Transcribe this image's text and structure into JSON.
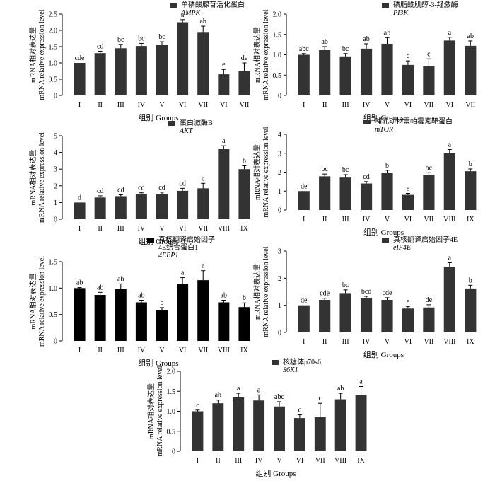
{
  "chart_data": [
    {
      "type": "bar",
      "title_cn": "单磷酸腺苷活化蛋白",
      "title_en": "AMPK",
      "ylabel_cn": "mRNA相对表达量",
      "ylabel_en": "mRNA relative expression level",
      "xlabel": "组别 Groups",
      "ylim": [
        0,
        2.5
      ],
      "yticks": [
        "0",
        "0.5",
        "1.0",
        "1.5",
        "2.0",
        "2.5"
      ],
      "categories": [
        "I",
        "II",
        "III",
        "IV",
        "V",
        "VI",
        "VII",
        "VI",
        "VII"
      ],
      "values": [
        1.0,
        1.3,
        1.45,
        1.52,
        1.55,
        2.25,
        1.95,
        0.65,
        0.75
      ],
      "errors": [
        0.0,
        0.06,
        0.12,
        0.08,
        0.1,
        0.08,
        0.18,
        0.15,
        0.25
      ],
      "letters": [
        "cde",
        "cd",
        "bc",
        "bc",
        "bc",
        "a",
        "ab",
        "e",
        "de"
      ],
      "fill": "#333333"
    },
    {
      "type": "bar",
      "title_cn": "磷脂酰肌醇-3-羟激酶",
      "title_en": "PI3K",
      "ylabel_cn": "mRNA相对表达量",
      "ylabel_en": "mRNA relative expression level",
      "xlabel": "组别 Groups",
      "ylim": [
        0,
        2.0
      ],
      "yticks": [
        "0",
        "0.5",
        "1.0",
        "1.5",
        "2.0"
      ],
      "categories": [
        "I",
        "II",
        "III",
        "IV",
        "V",
        "VI",
        "VII",
        "VI",
        "VII"
      ],
      "values": [
        1.0,
        1.12,
        0.96,
        1.15,
        1.27,
        0.75,
        0.72,
        1.35,
        1.22
      ],
      "errors": [
        0.03,
        0.08,
        0.07,
        0.12,
        0.15,
        0.1,
        0.18,
        0.08,
        0.12
      ],
      "letters": [
        "abc",
        "ab",
        "bc",
        "ab",
        "ab",
        "c",
        "c",
        "a",
        "ab"
      ],
      "fill": "#333333"
    },
    {
      "type": "bar",
      "title_cn": "蛋白激酶B",
      "title_en": "AKT",
      "ylabel_cn": "mRNA相对表达量",
      "ylabel_en": "mRNA relative expression level",
      "xlabel": "组别 Groups",
      "ylim": [
        0,
        5
      ],
      "yticks": [
        "0",
        "1",
        "2",
        "3",
        "4",
        "5"
      ],
      "categories": [
        "I",
        "II",
        "III",
        "IV",
        "V",
        "VI",
        "VII",
        "VIII",
        "IX"
      ],
      "values": [
        1.0,
        1.3,
        1.38,
        1.52,
        1.5,
        1.7,
        1.85,
        4.2,
        3.0
      ],
      "errors": [
        0.0,
        0.1,
        0.08,
        0.06,
        0.12,
        0.15,
        0.3,
        0.2,
        0.2
      ],
      "letters": [
        "d",
        "cd",
        "cd",
        "cd",
        "cd",
        "cd",
        "c",
        "a",
        "b"
      ],
      "fill": "#333333"
    },
    {
      "type": "bar",
      "title_cn": "哺乳动物雷帕霉素靶蛋白",
      "title_en": "mTOR",
      "ylabel_cn": "mRNA相对表达量",
      "ylabel_en": "mRNA relative expression level",
      "xlabel": "组别 Groups",
      "ylim": [
        0,
        4
      ],
      "yticks": [
        "0",
        "1",
        "2",
        "3",
        "4"
      ],
      "categories": [
        "I",
        "II",
        "III",
        "IV",
        "V",
        "VI",
        "VII",
        "VIII",
        "IX"
      ],
      "values": [
        1.0,
        1.78,
        1.75,
        1.4,
        1.98,
        0.8,
        1.85,
        3.0,
        2.05
      ],
      "errors": [
        0.0,
        0.12,
        0.12,
        0.1,
        0.12,
        0.08,
        0.12,
        0.2,
        0.12
      ],
      "letters": [
        "de",
        "bc",
        "bc",
        "cd",
        "b",
        "e",
        "bc",
        "a",
        "b"
      ],
      "fill": "#333333"
    },
    {
      "type": "bar",
      "title_cn": "真核翻译启始因子",
      "title_cn2": "4E结合蛋白1",
      "title_en": "4EBP1",
      "ylabel_cn": "mRNA相对表达量",
      "ylabel_en": "mRNA relative expression level",
      "xlabel": "组别 Groups",
      "ylim": [
        0,
        1.5
      ],
      "yticks": [
        "0",
        "0.5",
        "1.0",
        "1.5"
      ],
      "categories": [
        "I",
        "II",
        "III",
        "IV",
        "V",
        "VI",
        "VII",
        "VIII",
        "IX"
      ],
      "values": [
        1.0,
        0.87,
        0.98,
        0.73,
        0.58,
        1.08,
        1.15,
        0.73,
        0.64
      ],
      "errors": [
        0.01,
        0.05,
        0.1,
        0.04,
        0.05,
        0.12,
        0.18,
        0.04,
        0.08
      ],
      "letters": [
        "ab",
        "ab",
        "ab",
        "ab",
        "b",
        "a",
        "a",
        "ab",
        "b"
      ],
      "fill": "#000000"
    },
    {
      "type": "bar",
      "title_cn": "真核翻译启始因子4E",
      "title_en": "eIF4E",
      "ylabel_cn": "mRNA相对表达量",
      "ylabel_en": "mRNA relative expression level",
      "xlabel": "组别 Groups",
      "ylim": [
        0,
        3
      ],
      "yticks": [
        "0",
        "1",
        "2",
        "3"
      ],
      "categories": [
        "I",
        "II",
        "III",
        "IV",
        "V",
        "VI",
        "VII",
        "VIII",
        "IX"
      ],
      "values": [
        1.0,
        1.2,
        1.45,
        1.27,
        1.2,
        0.88,
        0.92,
        2.42,
        1.62
      ],
      "errors": [
        0.0,
        0.06,
        0.12,
        0.06,
        0.08,
        0.08,
        0.1,
        0.15,
        0.12
      ],
      "letters": [
        "de",
        "cde",
        "bc",
        "bcd",
        "cde",
        "e",
        "de",
        "a",
        "b"
      ],
      "fill": "#333333"
    },
    {
      "type": "bar",
      "title_cn": "核糖体p70s6",
      "title_en": "S6K1",
      "ylabel_cn": "mRNA相对表达量",
      "ylabel_en": "mRNA relative expression level",
      "xlabel": "组别 Groups",
      "ylim": [
        0,
        2.0
      ],
      "yticks": [
        "0",
        "0.5",
        "1.0",
        "1.5",
        "2.0"
      ],
      "categories": [
        "I",
        "II",
        "III",
        "IV",
        "V",
        "VI",
        "VII",
        "VIII",
        "IX"
      ],
      "values": [
        1.0,
        1.2,
        1.35,
        1.27,
        1.12,
        0.83,
        0.85,
        1.3,
        1.4
      ],
      "errors": [
        0.03,
        0.08,
        0.1,
        0.14,
        0.12,
        0.08,
        0.35,
        0.15,
        0.22
      ],
      "letters": [
        "c",
        "ab",
        "a",
        "a",
        "abc",
        "c",
        "c",
        "ab",
        "a"
      ],
      "fill": "#333333"
    }
  ]
}
